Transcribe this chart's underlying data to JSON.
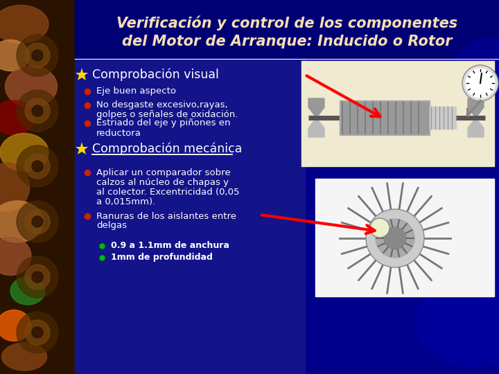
{
  "bg_color": "#00008B",
  "left_strip_color": "#2F1A00",
  "title_color": "#F5DEB3",
  "text_color": "#FFFFFF",
  "yellow_star_color": "#FFD700",
  "red_bullet_color": "#CC2200",
  "green_bullet_color": "#00BB00",
  "title_line1": "Verificación y control de los componentes",
  "title_line2": "del Motor de Arranque: Inducido o Rotor",
  "section1": "Comprobación visual",
  "section1_items": [
    "Eje buen aspecto",
    "No desgaste excesivo,rayas,\ngolpes o señales de oxidación.",
    "Estriado del eje y piñones en\nreductora"
  ],
  "section2": "Comprobación mecánica",
  "section2_items": [
    "Aplicar un comparador sobre\ncalzos al núcleo de chapas y\nal colector. Excentricidad (0,05\na 0,015mm).",
    "Ranuras de los aislantes entre\ndelgas"
  ],
  "section2_sub_items": [
    "0.9 a 1.1mm de anchura",
    "1mm de profundidad"
  ],
  "img1_bg": "#F0EAD0",
  "img2_bg": "#F5F5F5",
  "arrow_color": "#FF0000"
}
